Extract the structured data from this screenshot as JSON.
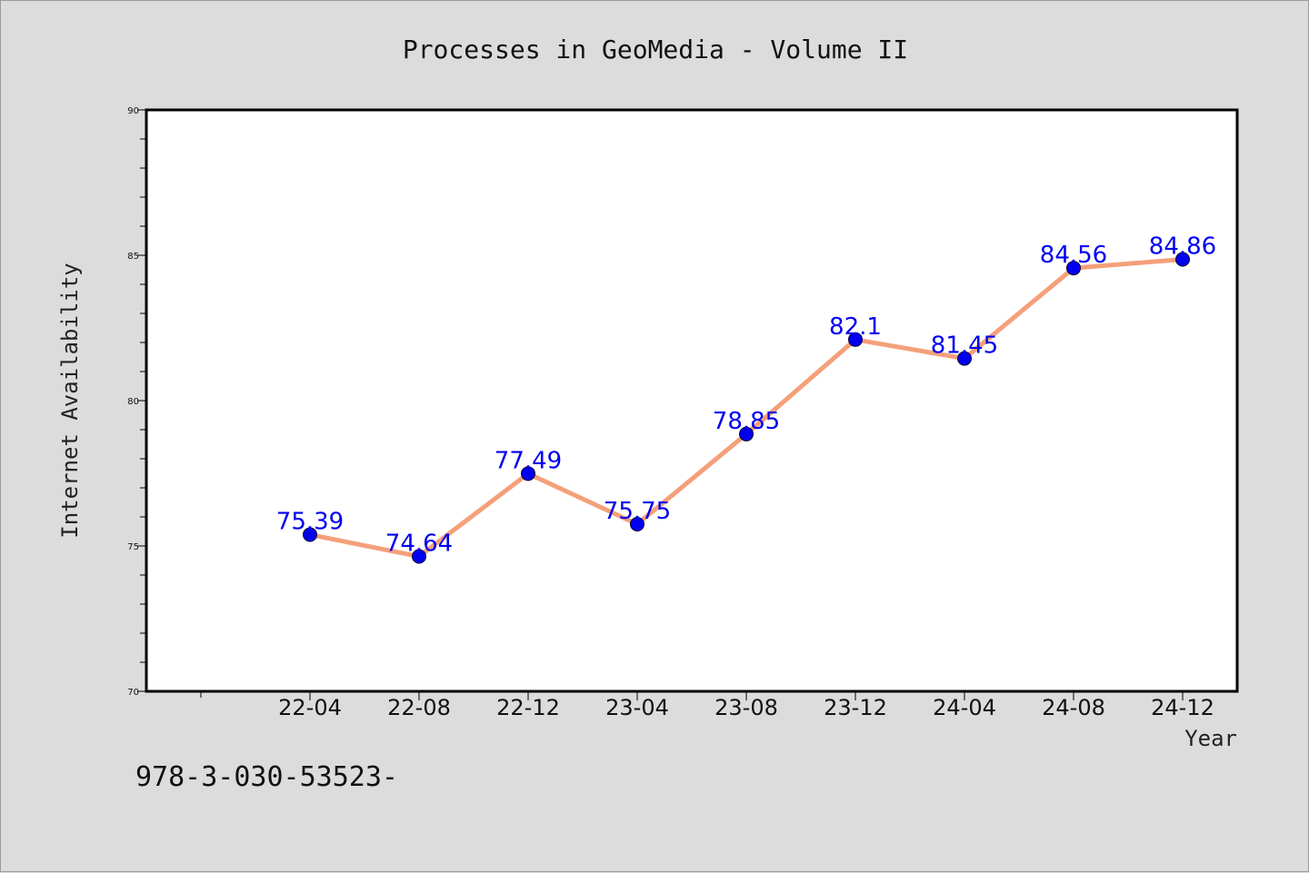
{
  "chart_data": {
    "type": "line",
    "title": "Processes in GeoMedia - Volume II",
    "xlabel": "Year",
    "ylabel": "Internet Availability",
    "categories": [
      "22-04",
      "22-08",
      "22-12",
      "23-04",
      "23-08",
      "23-12",
      "24-04",
      "24-08",
      "24-12"
    ],
    "values": [
      75.39,
      74.64,
      77.49,
      75.75,
      78.85,
      82.1,
      81.45,
      84.56,
      84.86
    ],
    "data_labels": [
      "75.39",
      "74.64",
      "77.49",
      "75.75",
      "78.85",
      "82.1",
      "81.45",
      "84.56",
      "84.86"
    ],
    "ylim": [
      70,
      90
    ],
    "yticks": [
      70,
      75,
      80,
      85,
      90
    ],
    "grid": false,
    "legend": "none",
    "colors": {
      "line": "#f4a07a",
      "marker": "#0000ee",
      "data_label": "#0000ee",
      "background": "#dcdcdc",
      "plot_area": "#ffffff"
    }
  },
  "footer": {
    "text": "978-3-030-53523-"
  }
}
